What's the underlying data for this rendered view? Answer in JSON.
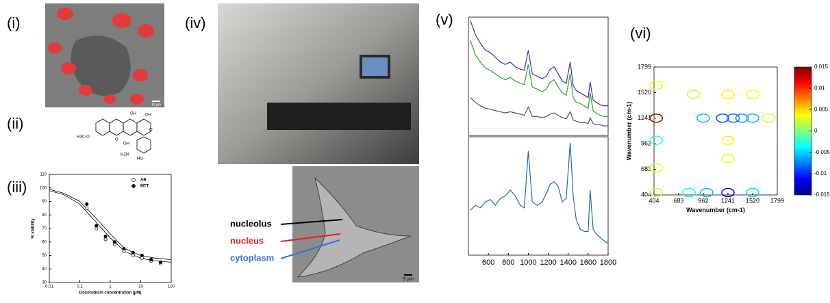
{
  "panel_labels": [
    "(i)",
    "(ii)",
    "(iii)",
    "(iv)",
    "(v)",
    "(vi)"
  ],
  "scale_bars": [
    "10 µm",
    "5 µm"
  ],
  "structure_labels": [
    "OH",
    "O",
    "OH",
    "H3C-O",
    "O",
    "OH",
    "H2N",
    "HO"
  ],
  "cell_labels": [
    {
      "text": "nucleolus",
      "color": "#000000"
    },
    {
      "text": "nucleus",
      "color": "#e02020"
    },
    {
      "text": "cytoplasm",
      "color": "#3a6fd8"
    }
  ],
  "chart_data": [
    {
      "type": "scatter",
      "xlabel": "Doxorubicin concentration (µM)",
      "ylabel": "% viability",
      "xscale": "log",
      "xlim": [
        0.01,
        100
      ],
      "xticks": [
        0.01,
        0.1,
        1,
        10,
        100
      ],
      "ylim": [
        30,
        110
      ],
      "yticks": [
        30,
        40,
        50,
        60,
        70,
        80,
        90,
        100,
        110
      ],
      "series": [
        {
          "name": "AB",
          "marker": "open",
          "x": [
            0.17,
            0.35,
            0.7,
            1.4,
            2.8,
            5.6,
            11,
            22,
            45
          ],
          "values": [
            85,
            70,
            62,
            58,
            53,
            50,
            48,
            46,
            44
          ]
        },
        {
          "name": "MTT",
          "marker": "filled",
          "x": [
            0.17,
            0.35,
            0.7,
            1.4,
            2.8,
            5.6,
            11,
            22,
            45
          ],
          "values": [
            88,
            72,
            64,
            60,
            55,
            52,
            50,
            47,
            45
          ]
        }
      ],
      "fits": [
        {
          "x": [
            0.01,
            0.03,
            0.1,
            0.3,
            1,
            3,
            10,
            30,
            100
          ],
          "values": [
            98,
            95,
            88,
            76,
            63,
            53,
            48,
            46,
            45
          ]
        },
        {
          "x": [
            0.01,
            0.03,
            0.1,
            0.3,
            1,
            3,
            10,
            30,
            100
          ],
          "values": [
            99,
            96,
            90,
            79,
            66,
            55,
            50,
            48,
            47
          ]
        }
      ]
    },
    {
      "type": "line",
      "xlim": [
        400,
        1800
      ],
      "ylim": [
        0,
        1
      ],
      "x": [
        420,
        470,
        520,
        570,
        620,
        670,
        720,
        770,
        820,
        870,
        920,
        960,
        1000,
        1040,
        1090,
        1140,
        1180,
        1220,
        1260,
        1300,
        1340,
        1380,
        1420,
        1450,
        1480,
        1520,
        1560,
        1600,
        1620,
        1650,
        1680,
        1720,
        1760,
        1800
      ],
      "series": [
        {
          "color": "#3030c8",
          "values": [
            0.97,
            0.85,
            0.78,
            0.72,
            0.7,
            0.66,
            0.62,
            0.6,
            0.62,
            0.58,
            0.56,
            0.55,
            0.72,
            0.52,
            0.5,
            0.48,
            0.5,
            0.56,
            0.58,
            0.52,
            0.46,
            0.44,
            0.62,
            0.42,
            0.38,
            0.36,
            0.34,
            0.32,
            0.45,
            0.3,
            0.28,
            0.26,
            0.25,
            0.25
          ]
        },
        {
          "color": "#2ca02c",
          "values": [
            0.8,
            0.68,
            0.62,
            0.57,
            0.55,
            0.52,
            0.49,
            0.47,
            0.49,
            0.46,
            0.44,
            0.43,
            0.6,
            0.41,
            0.39,
            0.37,
            0.39,
            0.45,
            0.47,
            0.41,
            0.36,
            0.34,
            0.52,
            0.32,
            0.28,
            0.27,
            0.25,
            0.23,
            0.36,
            0.21,
            0.19,
            0.17,
            0.16,
            0.16
          ]
        },
        {
          "color": "#555555",
          "values": [
            0.32,
            0.28,
            0.25,
            0.23,
            0.22,
            0.21,
            0.2,
            0.19,
            0.2,
            0.19,
            0.18,
            0.17,
            0.24,
            0.16,
            0.16,
            0.15,
            0.16,
            0.18,
            0.19,
            0.17,
            0.15,
            0.14,
            0.2,
            0.13,
            0.12,
            0.11,
            0.11,
            0.1,
            0.15,
            0.1,
            0.09,
            0.09,
            0.08,
            0.08
          ]
        }
      ]
    },
    {
      "type": "line",
      "xlim": [
        400,
        1800
      ],
      "ylim": [
        0,
        1
      ],
      "xticks": [
        600,
        800,
        1000,
        1200,
        1400,
        1600,
        1800
      ],
      "x": [
        420,
        470,
        520,
        570,
        620,
        670,
        720,
        770,
        820,
        870,
        920,
        960,
        1000,
        1040,
        1090,
        1140,
        1180,
        1220,
        1260,
        1300,
        1340,
        1380,
        1420,
        1450,
        1480,
        1520,
        1560,
        1600,
        1620,
        1650,
        1680,
        1720,
        1760,
        1800
      ],
      "series": [
        {
          "color": "#2a6a9a",
          "values": [
            0.38,
            0.42,
            0.4,
            0.45,
            0.47,
            0.42,
            0.48,
            0.5,
            0.55,
            0.5,
            0.42,
            0.4,
            0.88,
            0.45,
            0.42,
            0.45,
            0.52,
            0.6,
            0.62,
            0.58,
            0.45,
            0.48,
            0.95,
            0.5,
            0.3,
            0.22,
            0.2,
            0.2,
            0.55,
            0.22,
            0.18,
            0.15,
            0.12,
            0.1
          ]
        }
      ]
    },
    {
      "type": "contour",
      "xlabel": "Wavenumber (cm-1)",
      "ylabel": "Wavenumber (cm-1)",
      "xlim": [
        404,
        1799
      ],
      "ylim": [
        404,
        1799
      ],
      "xticks": [
        404,
        683,
        962,
        1241,
        1520,
        1799
      ],
      "yticks": [
        404,
        683,
        962,
        1241,
        1520,
        1799
      ],
      "zlim": [
        -0.015,
        0.015
      ],
      "zticks": [
        0.015,
        0.01,
        0.005,
        0,
        -0.005,
        -0.01,
        -0.015
      ],
      "x": [
        430,
        430,
        430,
        430,
        430,
        962,
        1180,
        1241,
        1241,
        1241,
        1241,
        1300,
        1400,
        1520,
        1520,
        1000,
        800,
        1520,
        1700,
        850
      ],
      "y": [
        1600,
        1241,
        1000,
        700,
        430,
        1241,
        1241,
        1500,
        1000,
        800,
        430,
        1241,
        1241,
        1500,
        1241,
        430,
        430,
        430,
        1241,
        1500
      ],
      "values": [
        0.004,
        0.014,
        -0.003,
        0.003,
        0.002,
        -0.006,
        -0.009,
        0.004,
        0.004,
        0.003,
        -0.012,
        -0.008,
        -0.007,
        0.004,
        -0.006,
        -0.006,
        -0.004,
        -0.005,
        0.003,
        0.002
      ]
    }
  ]
}
